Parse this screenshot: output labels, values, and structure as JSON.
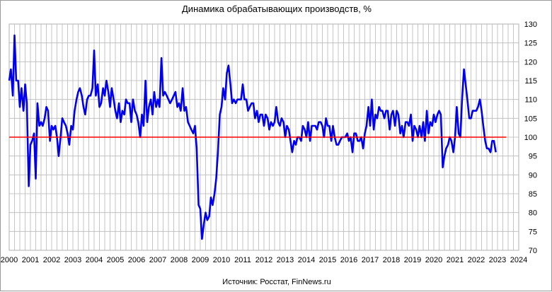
{
  "chart_data": {
    "type": "line",
    "title": "Динамика обрабатывающих производств, %",
    "source": "Источник: Росстат, FinNews.ru",
    "xlim": [
      2000,
      2024
    ],
    "ylim": [
      70,
      130
    ],
    "x_ticks": [
      "2000",
      "2001",
      "2002",
      "2003",
      "2004",
      "2005",
      "2006",
      "2007",
      "2008",
      "2009",
      "2010",
      "2011",
      "2012",
      "2013",
      "2014",
      "2015",
      "2016",
      "2017",
      "2018",
      "2019",
      "2020",
      "2021",
      "2022",
      "2023",
      "2024"
    ],
    "y_ticks": [
      70,
      75,
      80,
      85,
      90,
      95,
      100,
      105,
      110,
      115,
      120,
      125,
      130
    ],
    "y_axis_side": "right",
    "grid": true,
    "series": [
      {
        "color": "#0000ee",
        "points": [
          [
            2000.0,
            115
          ],
          [
            2000.08,
            118
          ],
          [
            2000.17,
            111
          ],
          [
            2000.25,
            127
          ],
          [
            2000.33,
            115
          ],
          [
            2000.42,
            115
          ],
          [
            2000.5,
            108
          ],
          [
            2000.58,
            113
          ],
          [
            2000.67,
            107
          ],
          [
            2000.75,
            114
          ],
          [
            2000.83,
            109
          ],
          [
            2000.92,
            87
          ],
          [
            2001.0,
            98
          ],
          [
            2001.08,
            99
          ],
          [
            2001.17,
            101
          ],
          [
            2001.25,
            89
          ],
          [
            2001.33,
            109
          ],
          [
            2001.42,
            103
          ],
          [
            2001.5,
            104
          ],
          [
            2001.58,
            103
          ],
          [
            2001.67,
            105
          ],
          [
            2001.75,
            108
          ],
          [
            2001.83,
            107
          ],
          [
            2001.92,
            99
          ],
          [
            2002.0,
            103
          ],
          [
            2002.08,
            102
          ],
          [
            2002.17,
            103
          ],
          [
            2002.25,
            100
          ],
          [
            2002.33,
            95
          ],
          [
            2002.42,
            100
          ],
          [
            2002.5,
            105
          ],
          [
            2002.58,
            104
          ],
          [
            2002.67,
            103
          ],
          [
            2002.75,
            101
          ],
          [
            2002.83,
            98
          ],
          [
            2002.92,
            103
          ],
          [
            2003.0,
            102
          ],
          [
            2003.08,
            107
          ],
          [
            2003.17,
            110
          ],
          [
            2003.25,
            112
          ],
          [
            2003.33,
            113
          ],
          [
            2003.42,
            111
          ],
          [
            2003.5,
            108
          ],
          [
            2003.58,
            106
          ],
          [
            2003.67,
            110
          ],
          [
            2003.75,
            111
          ],
          [
            2003.83,
            111
          ],
          [
            2003.92,
            113
          ],
          [
            2004.0,
            123
          ],
          [
            2004.08,
            111
          ],
          [
            2004.17,
            114
          ],
          [
            2004.25,
            108
          ],
          [
            2004.33,
            109
          ],
          [
            2004.42,
            113
          ],
          [
            2004.5,
            111
          ],
          [
            2004.58,
            115
          ],
          [
            2004.67,
            112
          ],
          [
            2004.75,
            108
          ],
          [
            2004.83,
            113
          ],
          [
            2004.92,
            110
          ],
          [
            2005.0,
            107
          ],
          [
            2005.08,
            105
          ],
          [
            2005.17,
            109
          ],
          [
            2005.25,
            104
          ],
          [
            2005.33,
            107
          ],
          [
            2005.42,
            106
          ],
          [
            2005.5,
            110
          ],
          [
            2005.58,
            109
          ],
          [
            2005.67,
            109
          ],
          [
            2005.75,
            104
          ],
          [
            2005.83,
            110
          ],
          [
            2005.92,
            107
          ],
          [
            2006.0,
            106
          ],
          [
            2006.08,
            104
          ],
          [
            2006.17,
            100
          ],
          [
            2006.25,
            106
          ],
          [
            2006.33,
            103
          ],
          [
            2006.42,
            115
          ],
          [
            2006.5,
            104
          ],
          [
            2006.58,
            108
          ],
          [
            2006.67,
            110
          ],
          [
            2006.75,
            106
          ],
          [
            2006.83,
            112
          ],
          [
            2006.92,
            108
          ],
          [
            2007.0,
            110
          ],
          [
            2007.08,
            108
          ],
          [
            2007.17,
            121
          ],
          [
            2007.25,
            111
          ],
          [
            2007.33,
            112
          ],
          [
            2007.42,
            111
          ],
          [
            2007.5,
            110
          ],
          [
            2007.58,
            109
          ],
          [
            2007.67,
            110
          ],
          [
            2007.75,
            111
          ],
          [
            2007.83,
            112
          ],
          [
            2007.92,
            108
          ],
          [
            2008.0,
            109
          ],
          [
            2008.08,
            107
          ],
          [
            2008.17,
            113
          ],
          [
            2008.25,
            107
          ],
          [
            2008.33,
            108
          ],
          [
            2008.42,
            104
          ],
          [
            2008.5,
            103
          ],
          [
            2008.58,
            102
          ],
          [
            2008.67,
            101
          ],
          [
            2008.75,
            103
          ],
          [
            2008.83,
            97
          ],
          [
            2008.92,
            82
          ],
          [
            2009.0,
            81
          ],
          [
            2009.08,
            73
          ],
          [
            2009.17,
            77
          ],
          [
            2009.25,
            80
          ],
          [
            2009.33,
            78
          ],
          [
            2009.42,
            79
          ],
          [
            2009.5,
            84
          ],
          [
            2009.58,
            82
          ],
          [
            2009.67,
            85
          ],
          [
            2009.75,
            89
          ],
          [
            2009.83,
            96
          ],
          [
            2009.92,
            106
          ],
          [
            2010.0,
            108
          ],
          [
            2010.08,
            113
          ],
          [
            2010.17,
            110
          ],
          [
            2010.25,
            117
          ],
          [
            2010.33,
            119
          ],
          [
            2010.42,
            114
          ],
          [
            2010.5,
            109
          ],
          [
            2010.58,
            110
          ],
          [
            2010.67,
            109
          ],
          [
            2010.75,
            110
          ],
          [
            2010.83,
            110
          ],
          [
            2010.92,
            110
          ],
          [
            2011.0,
            114
          ],
          [
            2011.08,
            110
          ],
          [
            2011.17,
            110
          ],
          [
            2011.25,
            107
          ],
          [
            2011.33,
            108
          ],
          [
            2011.42,
            109
          ],
          [
            2011.5,
            109
          ],
          [
            2011.58,
            105
          ],
          [
            2011.67,
            107
          ],
          [
            2011.75,
            104
          ],
          [
            2011.83,
            106
          ],
          [
            2011.92,
            106
          ],
          [
            2012.0,
            103
          ],
          [
            2012.08,
            106
          ],
          [
            2012.17,
            105
          ],
          [
            2012.25,
            102
          ],
          [
            2012.33,
            104
          ],
          [
            2012.42,
            103
          ],
          [
            2012.5,
            104
          ],
          [
            2012.58,
            108
          ],
          [
            2012.67,
            104
          ],
          [
            2012.75,
            103
          ],
          [
            2012.83,
            105
          ],
          [
            2012.92,
            104
          ],
          [
            2013.0,
            100
          ],
          [
            2013.08,
            103
          ],
          [
            2013.17,
            102
          ],
          [
            2013.25,
            99
          ],
          [
            2013.33,
            96
          ],
          [
            2013.42,
            99
          ],
          [
            2013.5,
            98
          ],
          [
            2013.58,
            100
          ],
          [
            2013.67,
            100
          ],
          [
            2013.75,
            99
          ],
          [
            2013.83,
            103
          ],
          [
            2013.92,
            102
          ],
          [
            2014.0,
            100
          ],
          [
            2014.08,
            104
          ],
          [
            2014.17,
            99
          ],
          [
            2014.25,
            103
          ],
          [
            2014.33,
            103
          ],
          [
            2014.42,
            103
          ],
          [
            2014.5,
            102
          ],
          [
            2014.58,
            104
          ],
          [
            2014.67,
            104
          ],
          [
            2014.75,
            103
          ],
          [
            2014.83,
            100
          ],
          [
            2014.92,
            105
          ],
          [
            2015.0,
            103
          ],
          [
            2015.08,
            103
          ],
          [
            2015.17,
            99
          ],
          [
            2015.25,
            103
          ],
          [
            2015.33,
            100
          ],
          [
            2015.42,
            98
          ],
          [
            2015.5,
            98
          ],
          [
            2015.58,
            99
          ],
          [
            2015.67,
            100
          ],
          [
            2015.75,
            100
          ],
          [
            2015.83,
            100
          ],
          [
            2015.92,
            101
          ],
          [
            2016.0,
            99
          ],
          [
            2016.08,
            100
          ],
          [
            2016.17,
            96
          ],
          [
            2016.25,
            101
          ],
          [
            2016.33,
            101
          ],
          [
            2016.42,
            99
          ],
          [
            2016.5,
            99
          ],
          [
            2016.58,
            100
          ],
          [
            2016.67,
            97
          ],
          [
            2016.75,
            101
          ],
          [
            2016.83,
            103
          ],
          [
            2016.92,
            108
          ],
          [
            2017.0,
            103
          ],
          [
            2017.08,
            110
          ],
          [
            2017.17,
            102
          ],
          [
            2017.25,
            106
          ],
          [
            2017.33,
            105
          ],
          [
            2017.42,
            108
          ],
          [
            2017.5,
            107
          ],
          [
            2017.58,
            107
          ],
          [
            2017.67,
            105
          ],
          [
            2017.75,
            107
          ],
          [
            2017.83,
            107
          ],
          [
            2017.92,
            102
          ],
          [
            2018.0,
            106
          ],
          [
            2018.08,
            107
          ],
          [
            2018.17,
            103
          ],
          [
            2018.25,
            107
          ],
          [
            2018.33,
            106
          ],
          [
            2018.42,
            101
          ],
          [
            2018.5,
            103
          ],
          [
            2018.58,
            100
          ],
          [
            2018.67,
            104
          ],
          [
            2018.75,
            104
          ],
          [
            2018.83,
            103
          ],
          [
            2018.92,
            106
          ],
          [
            2019.0,
            99
          ],
          [
            2019.08,
            103
          ],
          [
            2019.17,
            102
          ],
          [
            2019.25,
            100
          ],
          [
            2019.33,
            103
          ],
          [
            2019.42,
            100
          ],
          [
            2019.5,
            104
          ],
          [
            2019.58,
            99
          ],
          [
            2019.67,
            107
          ],
          [
            2019.75,
            101
          ],
          [
            2019.83,
            104
          ],
          [
            2019.92,
            103
          ],
          [
            2020.0,
            106
          ],
          [
            2020.08,
            104
          ],
          [
            2020.17,
            106
          ],
          [
            2020.25,
            107
          ],
          [
            2020.33,
            106
          ],
          [
            2020.42,
            92
          ],
          [
            2020.5,
            95
          ],
          [
            2020.58,
            97
          ],
          [
            2020.67,
            98
          ],
          [
            2020.75,
            100
          ],
          [
            2020.83,
            99
          ],
          [
            2020.92,
            96
          ],
          [
            2021.0,
            100
          ],
          [
            2021.08,
            108
          ],
          [
            2021.17,
            101
          ],
          [
            2021.25,
            100
          ],
          [
            2021.33,
            110
          ],
          [
            2021.42,
            118
          ],
          [
            2021.5,
            114
          ],
          [
            2021.58,
            110
          ],
          [
            2021.67,
            105
          ],
          [
            2021.75,
            105
          ],
          [
            2021.83,
            107
          ],
          [
            2021.92,
            107
          ],
          [
            2022.0,
            107
          ],
          [
            2022.08,
            108
          ],
          [
            2022.17,
            110
          ],
          [
            2022.25,
            107
          ],
          [
            2022.33,
            103
          ],
          [
            2022.42,
            99
          ],
          [
            2022.5,
            97
          ],
          [
            2022.58,
            97
          ],
          [
            2022.67,
            96
          ],
          [
            2022.75,
            99
          ],
          [
            2022.83,
            99
          ],
          [
            2022.92,
            96
          ]
        ]
      },
      {
        "color": "#ff0000",
        "points": [
          [
            2000.0,
            100
          ],
          [
            2023.4,
            100
          ]
        ]
      }
    ]
  }
}
